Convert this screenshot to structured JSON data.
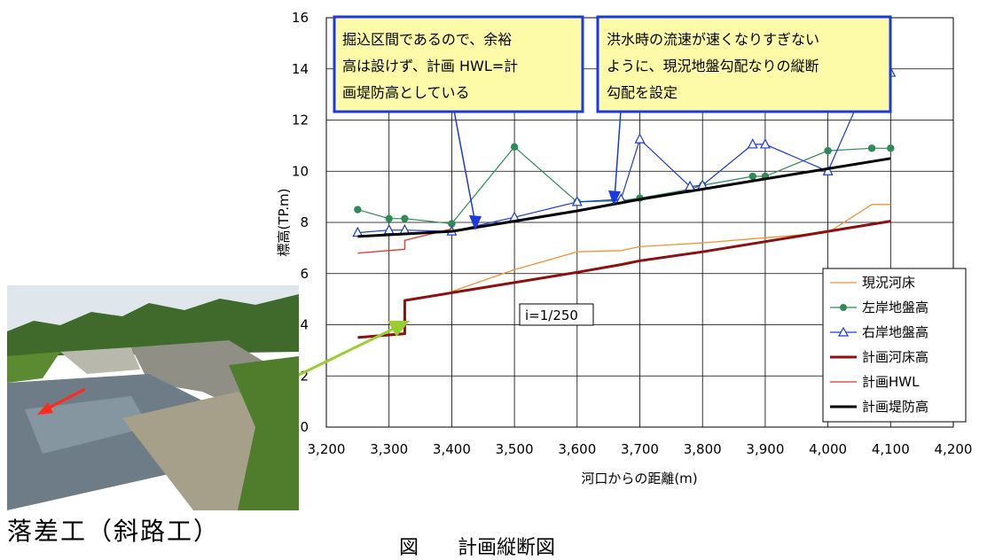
{
  "chart_data": {
    "type": "line",
    "xlabel": "河口からの距離(m)",
    "ylabel": "標高(TP.m)",
    "xlim": [
      3200,
      4200
    ],
    "ylim": [
      0,
      16
    ],
    "xticks": [
      "3,200",
      "3,300",
      "3,400",
      "3,500",
      "3,600",
      "3,700",
      "3,800",
      "3,900",
      "4,000",
      "4,100",
      "4,200"
    ],
    "yticks": [
      "0",
      "2",
      "4",
      "6",
      "8",
      "10",
      "12",
      "14",
      "16"
    ],
    "grid": true,
    "legend_position": "right",
    "series": [
      {
        "name": "現況河床",
        "color": "#f39233",
        "width": 1.3,
        "marker": "none",
        "points": [
          [
            3400,
            5.3
          ],
          [
            3500,
            6.15
          ],
          [
            3600,
            6.85
          ],
          [
            3670,
            6.9
          ],
          [
            3700,
            7.05
          ],
          [
            3800,
            7.2
          ],
          [
            3900,
            7.4
          ],
          [
            4000,
            7.6
          ],
          [
            4070,
            8.7
          ],
          [
            4100,
            8.7
          ]
        ]
      },
      {
        "name": "左岸地盤高",
        "color": "#2e8b57",
        "width": 1.2,
        "marker": "dot",
        "points": [
          [
            3250,
            8.5
          ],
          [
            3300,
            8.15
          ],
          [
            3325,
            8.15
          ],
          [
            3400,
            7.95
          ],
          [
            3500,
            10.95
          ],
          [
            3600,
            8.8
          ],
          [
            3670,
            8.85
          ],
          [
            3700,
            8.95
          ],
          [
            3780,
            9.3
          ],
          [
            3800,
            9.45
          ],
          [
            3880,
            9.8
          ],
          [
            3900,
            9.8
          ],
          [
            4000,
            10.8
          ],
          [
            4070,
            10.9
          ],
          [
            4100,
            10.9
          ]
        ]
      },
      {
        "name": "右岸地盤高",
        "color": "#1a39e0",
        "width": 1.2,
        "marker": "triangle",
        "points": [
          [
            3250,
            7.6
          ],
          [
            3300,
            7.7
          ],
          [
            3325,
            7.7
          ],
          [
            3400,
            7.65
          ],
          [
            3500,
            8.2
          ],
          [
            3600,
            8.8
          ],
          [
            3670,
            8.9
          ],
          [
            3700,
            11.25
          ],
          [
            3780,
            9.4
          ],
          [
            3800,
            9.45
          ],
          [
            3880,
            11.05
          ],
          [
            3900,
            11.05
          ],
          [
            4000,
            10.0
          ],
          [
            4070,
            13.9
          ],
          [
            4100,
            13.85
          ]
        ]
      },
      {
        "name": "計画河床高",
        "color": "#8b1010",
        "width": 3,
        "marker": "none",
        "points": [
          [
            3250,
            3.5
          ],
          [
            3325,
            3.65
          ],
          [
            3325,
            4.95
          ],
          [
            3400,
            5.25
          ],
          [
            3500,
            5.65
          ],
          [
            3600,
            6.05
          ],
          [
            3670,
            6.35
          ],
          [
            3700,
            6.5
          ],
          [
            3800,
            6.85
          ],
          [
            3900,
            7.25
          ],
          [
            4000,
            7.65
          ],
          [
            4100,
            8.05
          ]
        ]
      },
      {
        "name": "計画HWL",
        "color": "#e8322a",
        "width": 1.3,
        "marker": "none",
        "points": [
          [
            3250,
            6.8
          ],
          [
            3325,
            6.95
          ],
          [
            3325,
            7.3
          ],
          [
            3400,
            7.75
          ]
        ]
      },
      {
        "name": "計画堤防高",
        "color": "#000000",
        "width": 3,
        "marker": "none",
        "points": [
          [
            3250,
            7.45
          ],
          [
            3325,
            7.55
          ],
          [
            3400,
            7.65
          ],
          [
            3500,
            8.05
          ],
          [
            3600,
            8.45
          ],
          [
            3700,
            8.9
          ],
          [
            3800,
            9.3
          ],
          [
            3900,
            9.7
          ],
          [
            4000,
            10.1
          ],
          [
            4100,
            10.5
          ]
        ]
      }
    ],
    "annotations": {
      "callout_left": [
        "掘込区間であるので、余裕",
        "高は設けず、計画 HWL=計",
        "画堤防高としている"
      ],
      "callout_right": [
        "洪水時の流速が速くなりすぎない",
        "ように、現況地盤勾配なりの縦断",
        "勾配を設定"
      ],
      "slope_label": "i=1/250"
    }
  },
  "photo": {
    "caption": "落差工（斜路工）"
  },
  "figure_caption": "図　　計画縦断図"
}
